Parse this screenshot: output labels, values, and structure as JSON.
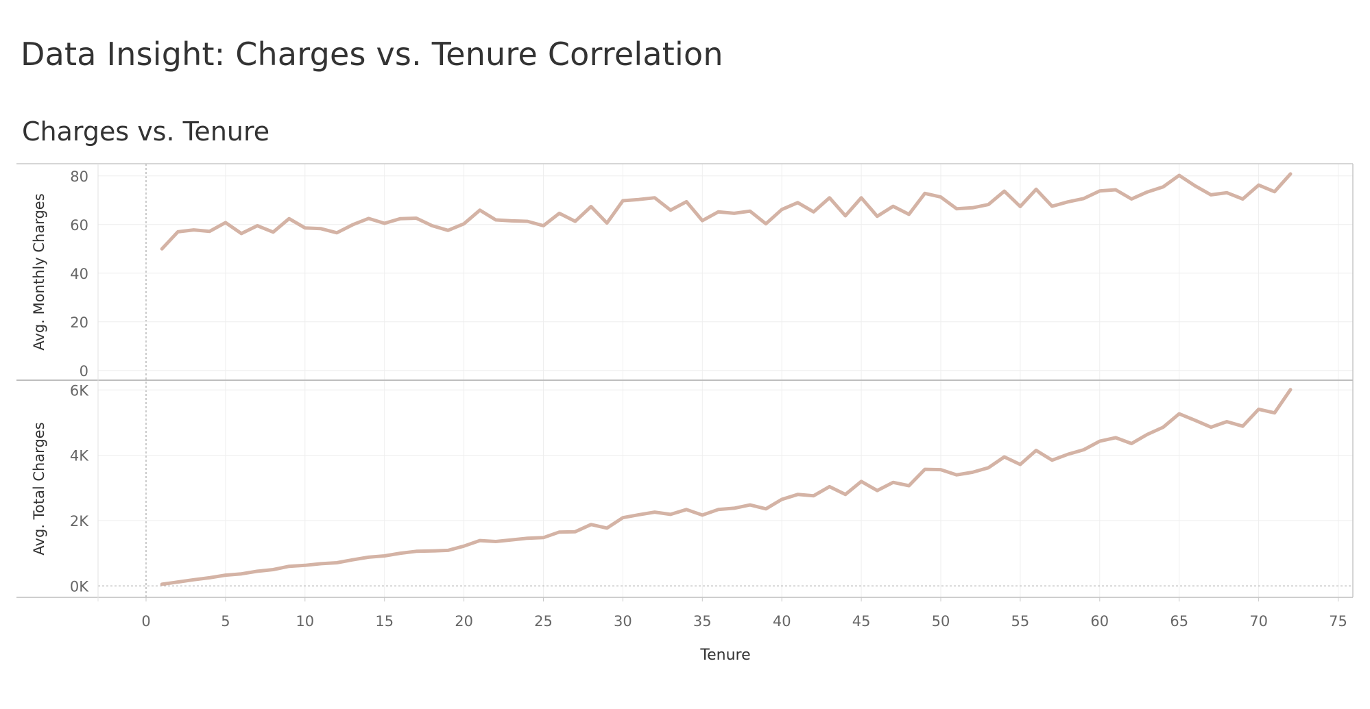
{
  "dashboard": {
    "title": "Data Insight: Charges vs. Tenure Correlation"
  },
  "chart_data": {
    "type": "line",
    "title": "Charges vs. Tenure",
    "xlabel": "Tenure",
    "xlim": [
      -3,
      76
    ],
    "xticks": [
      0,
      5,
      10,
      15,
      20,
      25,
      30,
      35,
      40,
      45,
      50,
      55,
      60,
      65,
      70,
      75
    ],
    "x": [
      1,
      2,
      3,
      4,
      5,
      6,
      7,
      8,
      9,
      10,
      11,
      12,
      13,
      14,
      15,
      16,
      17,
      18,
      19,
      20,
      21,
      22,
      23,
      24,
      25,
      26,
      27,
      28,
      29,
      30,
      31,
      32,
      33,
      34,
      35,
      36,
      37,
      38,
      39,
      40,
      41,
      42,
      43,
      44,
      45,
      46,
      47,
      48,
      49,
      50,
      51,
      52,
      53,
      54,
      55,
      56,
      57,
      58,
      59,
      60,
      61,
      62,
      63,
      64,
      65,
      66,
      67,
      68,
      69,
      70,
      71,
      72
    ],
    "color": "#d4b3a5",
    "grid": true,
    "panels": [
      {
        "ylabel": "Avg. Monthly Charges",
        "ylim": [
          -4,
          85
        ],
        "yticks": [
          0,
          20,
          40,
          60,
          80
        ],
        "ytick_labels": [
          "0",
          "20",
          "40",
          "60",
          "80"
        ],
        "values": [
          50.0,
          57.0,
          57.8,
          57.2,
          60.8,
          56.3,
          59.5,
          56.9,
          62.4,
          58.6,
          58.3,
          56.6,
          59.9,
          62.5,
          60.5,
          62.4,
          62.6,
          59.5,
          57.6,
          60.3,
          65.9,
          61.9,
          61.5,
          61.3,
          59.5,
          64.6,
          61.3,
          67.4,
          60.6,
          69.8,
          70.3,
          71.0,
          65.9,
          69.4,
          61.6,
          65.2,
          64.6,
          65.5,
          60.3,
          66.2,
          69.0,
          65.2,
          71.0,
          63.6,
          71.0,
          63.4,
          67.5,
          64.2,
          72.8,
          71.3,
          66.5,
          66.9,
          68.2,
          73.7,
          67.4,
          74.5,
          67.5,
          69.3,
          70.7,
          73.8,
          74.3,
          70.5,
          73.4,
          75.5,
          80.2,
          75.9,
          72.2,
          73.1,
          70.5,
          76.2,
          73.5,
          80.8
        ]
      },
      {
        "ylabel": "Avg. Total Charges",
        "ylim": [
          -350,
          6300
        ],
        "yticks": [
          0,
          2000,
          4000,
          6000
        ],
        "ytick_labels": [
          "0K",
          "2K",
          "4K",
          "6K"
        ],
        "values": [
          50,
          120,
          190,
          250,
          330,
          370,
          450,
          500,
          600,
          630,
          680,
          710,
          800,
          880,
          920,
          1000,
          1060,
          1070,
          1090,
          1220,
          1390,
          1360,
          1410,
          1460,
          1480,
          1650,
          1660,
          1880,
          1770,
          2090,
          2180,
          2260,
          2190,
          2340,
          2170,
          2340,
          2380,
          2480,
          2360,
          2650,
          2800,
          2760,
          3040,
          2800,
          3200,
          2920,
          3170,
          3070,
          3570,
          3560,
          3400,
          3480,
          3620,
          3950,
          3720,
          4150,
          3850,
          4030,
          4170,
          4430,
          4540,
          4360,
          4640,
          4860,
          5270,
          5070,
          4860,
          5030,
          4890,
          5410,
          5300,
          6010
        ]
      }
    ]
  }
}
